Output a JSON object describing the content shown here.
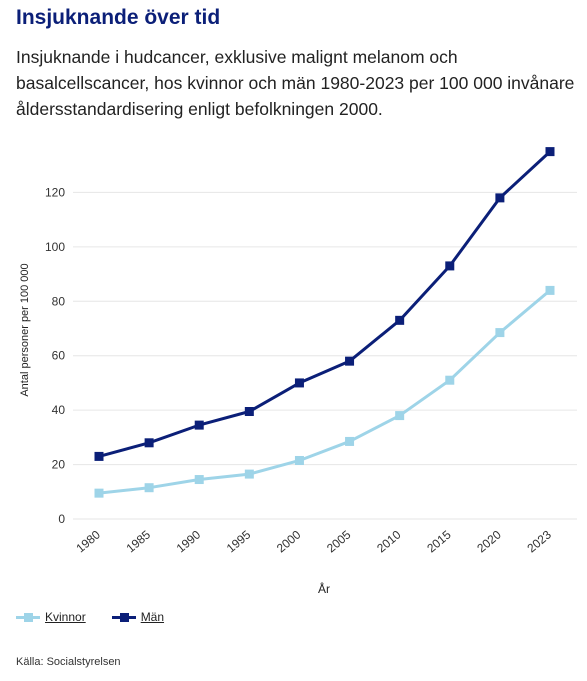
{
  "header": {
    "title": "Insjuknande över tid",
    "subtitle": "Insjuknande i hudcancer, exklusive malignt melanom och basalcellscancer, hos kvinnor och män 1980-2023 per 100 000 invånare åldersstandardisering enligt befolkningen 2000."
  },
  "chart_data": {
    "type": "line",
    "x": [
      "1980",
      "1985",
      "1990",
      "1995",
      "2000",
      "2005",
      "2010",
      "2015",
      "2020",
      "2023"
    ],
    "xlabel": "År",
    "ylabel": "Antal personer per 100 000",
    "ylim": [
      0,
      140
    ],
    "yticks": [
      0,
      20,
      40,
      60,
      80,
      100,
      120
    ],
    "grid": true,
    "legend_position": "bottom-left",
    "series": [
      {
        "name": "Kvinnor",
        "color": "#9ed4e8",
        "values": [
          9.5,
          11.5,
          14.5,
          16.5,
          21.5,
          28.5,
          38,
          51,
          68.5,
          84
        ]
      },
      {
        "name": "Män",
        "color": "#0b1f78",
        "values": [
          23,
          28,
          34.5,
          39.5,
          50,
          58,
          73,
          93,
          118,
          135
        ]
      }
    ]
  },
  "footer": {
    "source": "Källa: Socialstyrelsen"
  }
}
